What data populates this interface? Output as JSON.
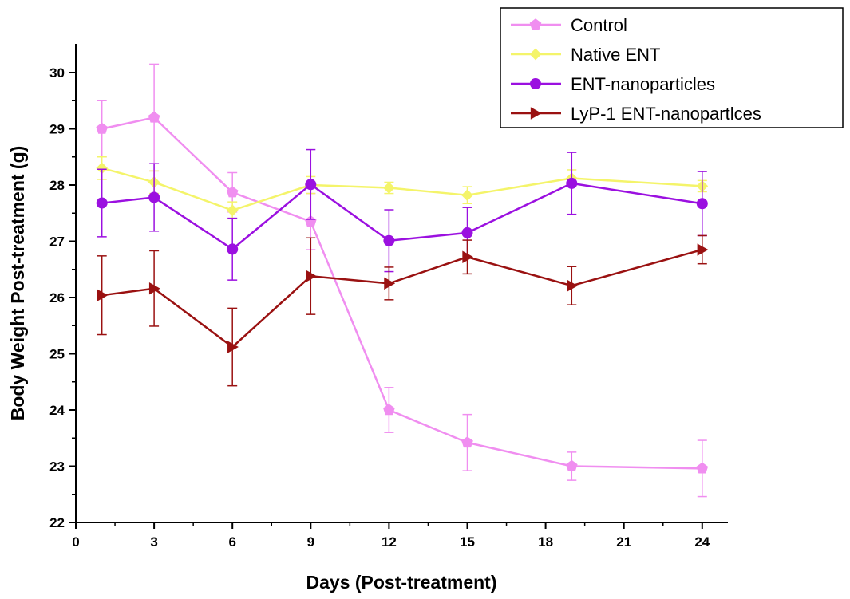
{
  "chart_data": {
    "type": "line",
    "xlabel": "Days (Post-treatment)",
    "ylabel": "Body Weight Post-treatment (g)",
    "xlim": [
      0,
      25
    ],
    "ylim": [
      22,
      30.5
    ],
    "xticks": [
      0,
      3,
      6,
      9,
      12,
      15,
      18,
      21,
      24
    ],
    "yticks": [
      22,
      23,
      24,
      25,
      26,
      27,
      28,
      29,
      30
    ],
    "legend_position": "top-right",
    "x": [
      1,
      3,
      6,
      9,
      12,
      15,
      19,
      24
    ],
    "series": [
      {
        "name": "Control",
        "color": "#f08ef0",
        "marker": "pentagon",
        "values": [
          29.0,
          29.2,
          27.87,
          27.35,
          24.0,
          23.42,
          23.0,
          22.96
        ],
        "errors": [
          0.5,
          0.95,
          0.35,
          0.5,
          0.4,
          0.5,
          0.25,
          0.5
        ]
      },
      {
        "name": "Native ENT",
        "color": "#f4f46a",
        "marker": "diamond",
        "values": [
          28.3,
          28.05,
          27.55,
          28.0,
          27.95,
          27.82,
          28.12,
          27.98
        ],
        "errors": [
          0.2,
          0.2,
          0.15,
          0.15,
          0.1,
          0.15,
          0.15,
          0.1
        ]
      },
      {
        "name": "ENT-nanoparticles",
        "color": "#9b10e0",
        "marker": "circle",
        "values": [
          27.68,
          27.78,
          26.86,
          28.01,
          27.01,
          27.15,
          28.03,
          27.67
        ],
        "errors": [
          0.6,
          0.6,
          0.55,
          0.62,
          0.55,
          0.45,
          0.55,
          0.57
        ]
      },
      {
        "name": "LyP-1 ENT-nanopartlces",
        "color": "#9a1111",
        "marker": "triangle-right",
        "values": [
          26.04,
          26.16,
          25.12,
          26.38,
          26.25,
          26.72,
          26.21,
          26.85
        ],
        "errors": [
          0.7,
          0.67,
          0.69,
          0.68,
          0.29,
          0.3,
          0.34,
          0.25
        ]
      }
    ]
  }
}
